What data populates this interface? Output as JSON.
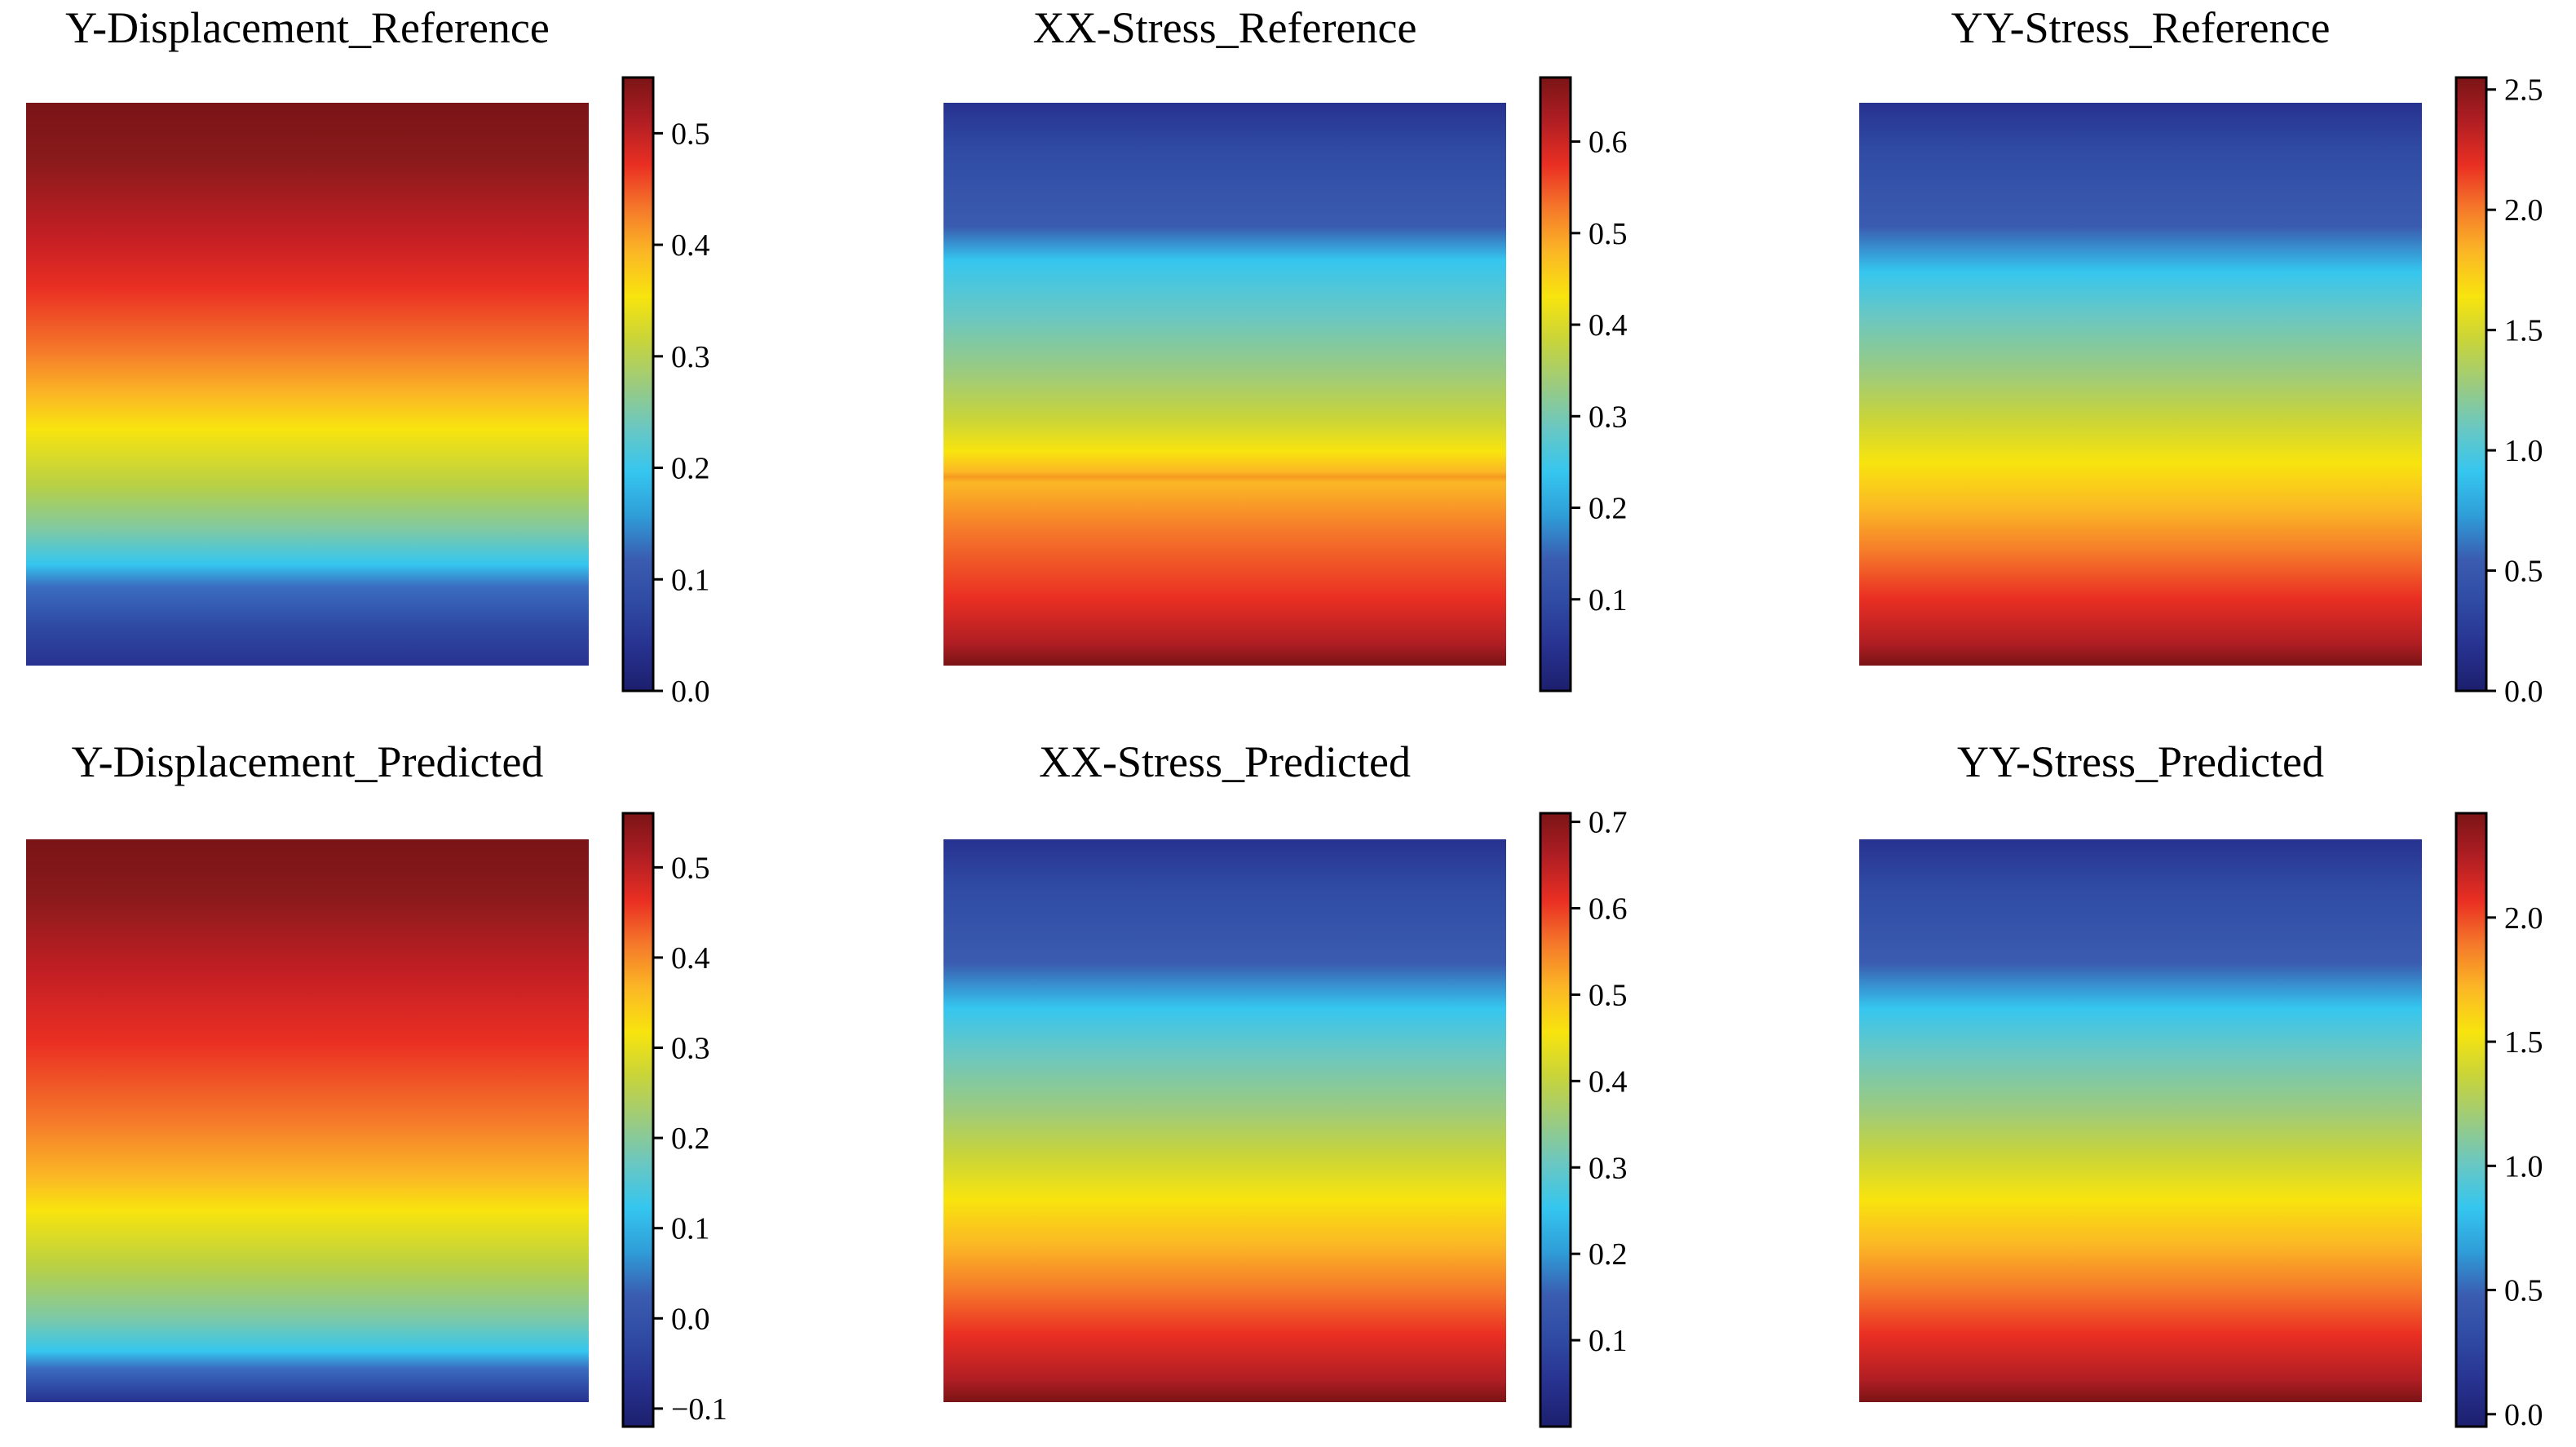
{
  "colormap": [
    "#1c1f6d",
    "#27328f",
    "#2f4aa3",
    "#3a5cb0",
    "#2f9ed8",
    "#35c6ef",
    "#6ac7c2",
    "#9ccb7e",
    "#c8d43a",
    "#f8e40e",
    "#fbb825",
    "#f5792a",
    "#ea2f23",
    "#b01e23",
    "#7a1416"
  ],
  "chart_data": [
    {
      "type": "heatmap",
      "title": "Y-Displacement_Reference",
      "profile": "ydisp",
      "invert": true,
      "colorbar": {
        "min": 0.0,
        "max": 0.55,
        "ticks": [
          0.0,
          0.1,
          0.2,
          0.3,
          0.4,
          0.5
        ],
        "labels": [
          "0.0",
          "0.1",
          "0.2",
          "0.3",
          "0.4",
          "0.5"
        ]
      }
    },
    {
      "type": "heatmap",
      "title": "XX-Stress_Reference",
      "profile": "stress_ref",
      "invert": false,
      "colorbar": {
        "min": 0.0,
        "max": 0.67,
        "ticks": [
          0.1,
          0.2,
          0.3,
          0.4,
          0.5,
          0.6
        ],
        "labels": [
          "0.1",
          "0.2",
          "0.3",
          "0.4",
          "0.5",
          "0.6"
        ]
      }
    },
    {
      "type": "heatmap",
      "title": "YY-Stress_Reference",
      "profile": "stress",
      "invert": false,
      "colorbar": {
        "min": 0.0,
        "max": 2.55,
        "ticks": [
          0.0,
          0.5,
          1.0,
          1.5,
          2.0,
          2.5
        ],
        "labels": [
          "0.0",
          "0.5",
          "1.0",
          "1.5",
          "2.0",
          "2.5"
        ]
      }
    },
    {
      "type": "heatmap",
      "title": "Y-Displacement_Predicted",
      "profile": "ydisp",
      "invert": true,
      "colorbar": {
        "min": -0.12,
        "max": 0.56,
        "ticks": [
          -0.1,
          0.0,
          0.1,
          0.2,
          0.3,
          0.4,
          0.5
        ],
        "labels": [
          "−0.1",
          "0.0",
          "0.1",
          "0.2",
          "0.3",
          "0.4",
          "0.5"
        ]
      }
    },
    {
      "type": "heatmap",
      "title": "XX-Stress_Predicted",
      "profile": "stress",
      "invert": false,
      "colorbar": {
        "min": 0.0,
        "max": 0.71,
        "ticks": [
          0.1,
          0.2,
          0.3,
          0.4,
          0.5,
          0.6,
          0.7
        ],
        "labels": [
          "0.1",
          "0.2",
          "0.3",
          "0.4",
          "0.5",
          "0.6",
          "0.7"
        ]
      }
    },
    {
      "type": "heatmap",
      "title": "YY-Stress_Predicted",
      "profile": "stress",
      "invert": false,
      "colorbar": {
        "min": -0.05,
        "max": 2.42,
        "ticks": [
          0.0,
          0.5,
          1.0,
          1.5,
          2.0
        ],
        "labels": [
          "0.0",
          "0.5",
          "1.0",
          "1.5",
          "2.0"
        ]
      }
    }
  ]
}
